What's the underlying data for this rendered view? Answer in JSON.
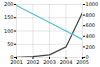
{
  "chart_data": {
    "type": "line",
    "x": [
      2001,
      2002,
      2003,
      2004,
      2005
    ],
    "xlim": [
      2001,
      2005
    ],
    "xticks": [
      2001,
      2002,
      2003,
      2004,
      2005
    ],
    "ylim": [
      0,
      200
    ],
    "yticks": [
      0,
      50,
      100,
      150,
      200
    ],
    "y2lim": [
      0,
      1000
    ],
    "y2ticks": [
      0,
      200,
      400,
      600,
      800,
      1000
    ],
    "grid": true,
    "series": [
      {
        "color": "#444444",
        "values": [
          1,
          3,
          10,
          40,
          170
        ]
      },
      {
        "color": "#55bbdd",
        "values": [
          980,
          820,
          660,
          500,
          340
        ],
        "axis": "y2"
      }
    ]
  }
}
